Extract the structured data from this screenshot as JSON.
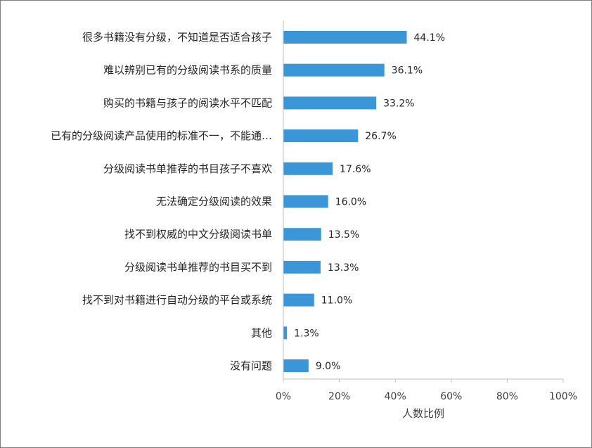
{
  "chart_data": {
    "type": "bar",
    "orientation": "horizontal",
    "categories": [
      "很多书籍没有分级，不知道是否适合孩子",
      "难以辨别已有的分级阅读书系的质量",
      "购买的书籍与孩子的阅读水平不匹配",
      "已有的分级阅读产品使用的标准不一，不能通…",
      "分级阅读书单推荐的书目孩子不喜欢",
      "无法确定分级阅读的效果",
      "找不到权威的中文分级阅读书单",
      "分级阅读书单推荐的书目买不到",
      "找不到对书籍进行自动分级的平台或系统",
      "其他",
      "没有问题"
    ],
    "values": [
      44.1,
      36.1,
      33.2,
      26.7,
      17.6,
      16.0,
      13.5,
      13.3,
      11.0,
      1.3,
      9.0
    ],
    "value_labels": [
      "44.1%",
      "36.1%",
      "33.2%",
      "26.7%",
      "17.6%",
      "16.0%",
      "13.5%",
      "13.3%",
      "11.0%",
      "1.3%",
      "9.0%"
    ],
    "xlim": [
      0,
      100
    ],
    "xticks": [
      0,
      20,
      40,
      60,
      80,
      100
    ],
    "xtick_labels": [
      "0%",
      "20%",
      "40%",
      "60%",
      "80%",
      "100%"
    ],
    "xlabel": "人数比例",
    "grid": false,
    "bar_color": "#3a96d6",
    "axis_color": "#bfbfbf"
  }
}
